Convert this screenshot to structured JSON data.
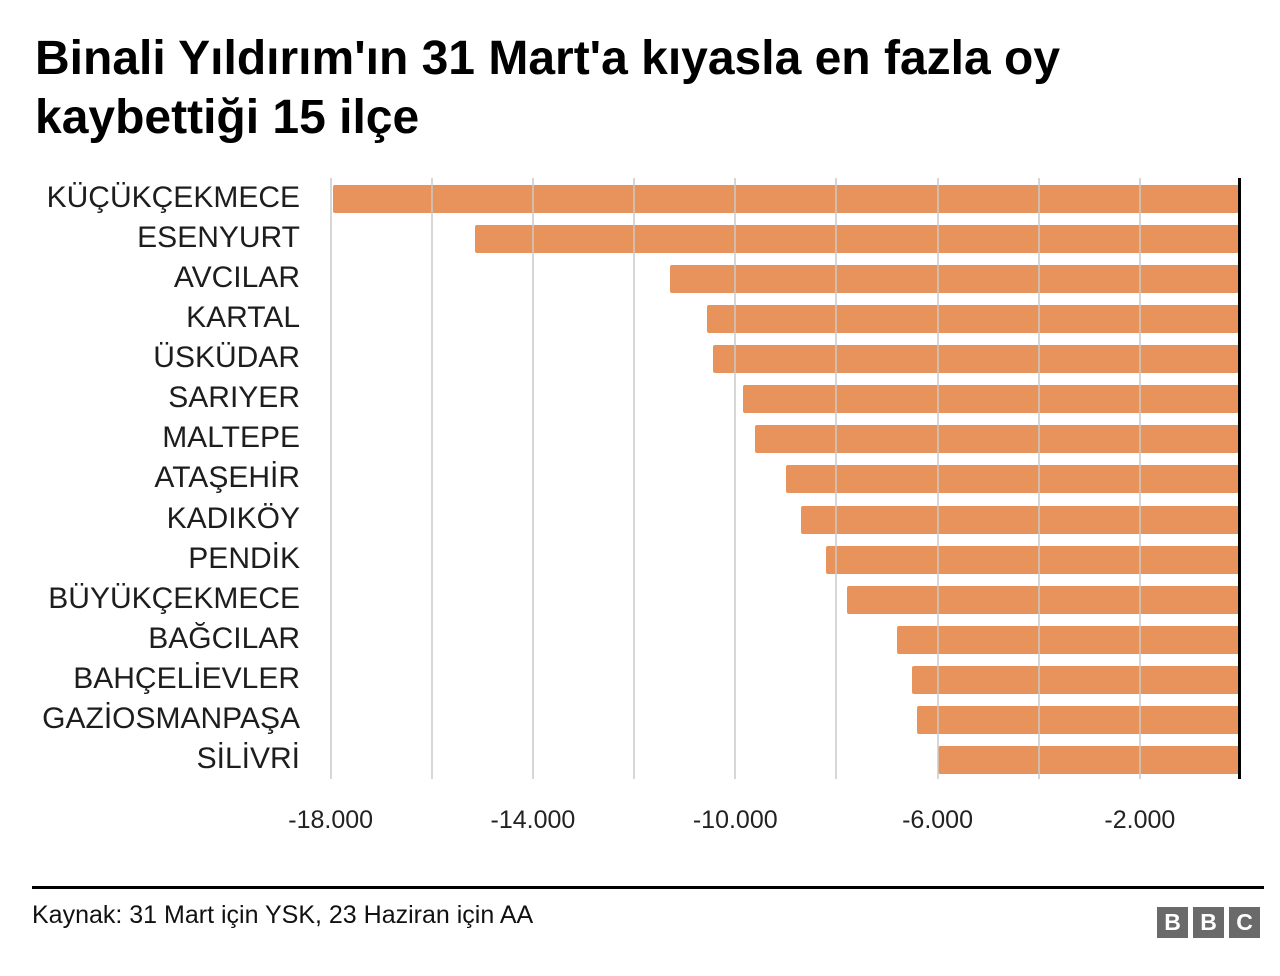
{
  "title_lines": [
    "Binali Yıldırım'ın 31 Mart'a kıyasla en fazla oy",
    "kaybettiği 15 ilçe"
  ],
  "chart_data": {
    "type": "bar",
    "orientation": "horizontal",
    "title": "Binali Yıldırım'ın 31 Mart'a kıyasla en fazla oy kaybettiği 15 ilçe",
    "categories": [
      "KÜÇÜKÇEKMECE",
      "ESENYURT",
      "AVCILAR",
      "KARTAL",
      "ÜSKÜDAR",
      "SARIYER",
      "MALTEPE",
      "ATAŞEHİR",
      "KADIKÖY",
      "PENDİK",
      "BÜYÜKÇEKMECE",
      "BAĞCILAR",
      "BAHÇELİEVLER",
      "GAZİOSMANPAŞA",
      "SİLİVRİ"
    ],
    "values": [
      -17950,
      -15150,
      -11300,
      -10550,
      -10450,
      -9850,
      -9600,
      -9000,
      -8700,
      -8200,
      -7800,
      -6800,
      -6500,
      -6400,
      -6000
    ],
    "xlim": [
      -18250,
      0
    ],
    "gridlines": [
      -18000,
      -16000,
      -14000,
      -12000,
      -10000,
      -8000,
      -6000,
      -4000,
      -2000
    ],
    "ticks": [
      {
        "value": -18000,
        "label": "-18.000"
      },
      {
        "value": -14000,
        "label": "-14.000"
      },
      {
        "value": -10000,
        "label": "-10.000"
      },
      {
        "value": -6000,
        "label": "-6.000"
      },
      {
        "value": -2000,
        "label": "-2.000"
      }
    ],
    "bar_color": "#e8935c",
    "gridline_color": "#c9c9c9",
    "axis_line_color": "#000000",
    "grid": "vertical-only",
    "legend": "none"
  },
  "footer": {
    "source": "Kaynak: 31 Mart için YSK, 23 Haziran için AA",
    "logo_blocks": [
      "B",
      "B",
      "C"
    ],
    "logo_color": "#6a6a6a"
  }
}
